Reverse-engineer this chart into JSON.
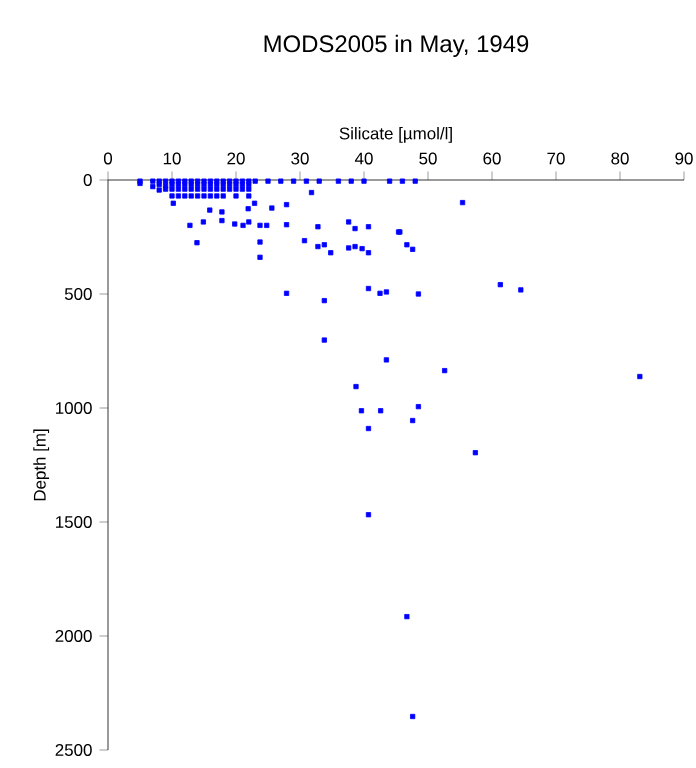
{
  "chart_data": {
    "type": "scatter",
    "title": "MODS2005 in May, 1949",
    "xlabel": "Silicate [µmol/l]",
    "ylabel": "Depth [m]",
    "xlim": [
      0,
      90
    ],
    "xticks": [
      0,
      10,
      20,
      30,
      40,
      50,
      60,
      70,
      80,
      90
    ],
    "ylim": [
      2500,
      0
    ],
    "yticks": [
      0,
      500,
      1000,
      1500,
      2000,
      2500
    ],
    "grid": false,
    "marker": "square",
    "series": [
      {
        "color": "#0000ff",
        "x": [
          5,
          7,
          8,
          9,
          10,
          11,
          12,
          13,
          14,
          15,
          16,
          17,
          18,
          19,
          20,
          21,
          22,
          23,
          25,
          27,
          29,
          31,
          33,
          36,
          38,
          40,
          44,
          46,
          48,
          5,
          7,
          8,
          9,
          10,
          11,
          12,
          13,
          14,
          15,
          16,
          17,
          18,
          19,
          20,
          21,
          22,
          8,
          9,
          10,
          11,
          12,
          13,
          14,
          15,
          16,
          17,
          18,
          19,
          20,
          21,
          22,
          10,
          11,
          12,
          13,
          14,
          15,
          16,
          17,
          18,
          20,
          22,
          10.2,
          12.8,
          14.9,
          13.9,
          17.8,
          17.8,
          15.9,
          19.8,
          21.1,
          22,
          23.75,
          24.8,
          23.75,
          23.75,
          21.9,
          22.9,
          25.6,
          27.9,
          27.9,
          27.9,
          30.7,
          31.8,
          32.8,
          32.8,
          33.8,
          34.8,
          33.8,
          33.8,
          37.6,
          38.6,
          38.6,
          37.6,
          39.7,
          40.7,
          40.7,
          40.7,
          42.5,
          43.5,
          43.5,
          45.4,
          55.4,
          45.6,
          46.7,
          47.6,
          48.5,
          61.3,
          64.5,
          52.6,
          83.1,
          38.75,
          39.6,
          42.6,
          48.5,
          47.6,
          40.7,
          57.4,
          40.7,
          46.7,
          47.6
        ],
        "values": [
          5,
          5,
          5,
          5,
          5,
          5,
          5,
          5,
          5,
          5,
          5,
          5,
          5,
          5,
          5,
          5,
          5,
          5,
          5,
          5,
          5,
          5,
          5,
          5,
          5,
          5,
          5,
          5,
          5,
          15,
          29,
          20,
          25,
          20,
          20,
          20,
          20,
          20,
          20,
          20,
          20,
          20,
          20,
          20,
          20,
          20,
          44,
          40,
          40,
          40,
          40,
          40,
          40,
          40,
          40,
          40,
          40,
          40,
          40,
          40,
          40,
          70,
          70,
          70,
          70,
          70,
          70,
          70,
          70,
          70,
          70,
          70,
          102,
          199,
          184,
          275,
          178,
          140,
          132,
          193,
          199,
          184,
          199,
          199,
          272,
          339,
          126,
          102,
          123,
          108,
          196,
          497,
          266,
          55,
          205,
          292,
          284,
          319,
          529,
          702,
          184,
          213,
          292,
          298,
          301,
          205,
          319,
          476,
          497,
          491,
          789,
          228,
          99,
          228,
          284,
          304,
          500,
          459,
          482,
          836,
          862,
          906,
          1012,
          1012,
          994,
          1055,
          1090,
          1196,
          1468,
          1915,
          2353
        ]
      }
    ]
  }
}
